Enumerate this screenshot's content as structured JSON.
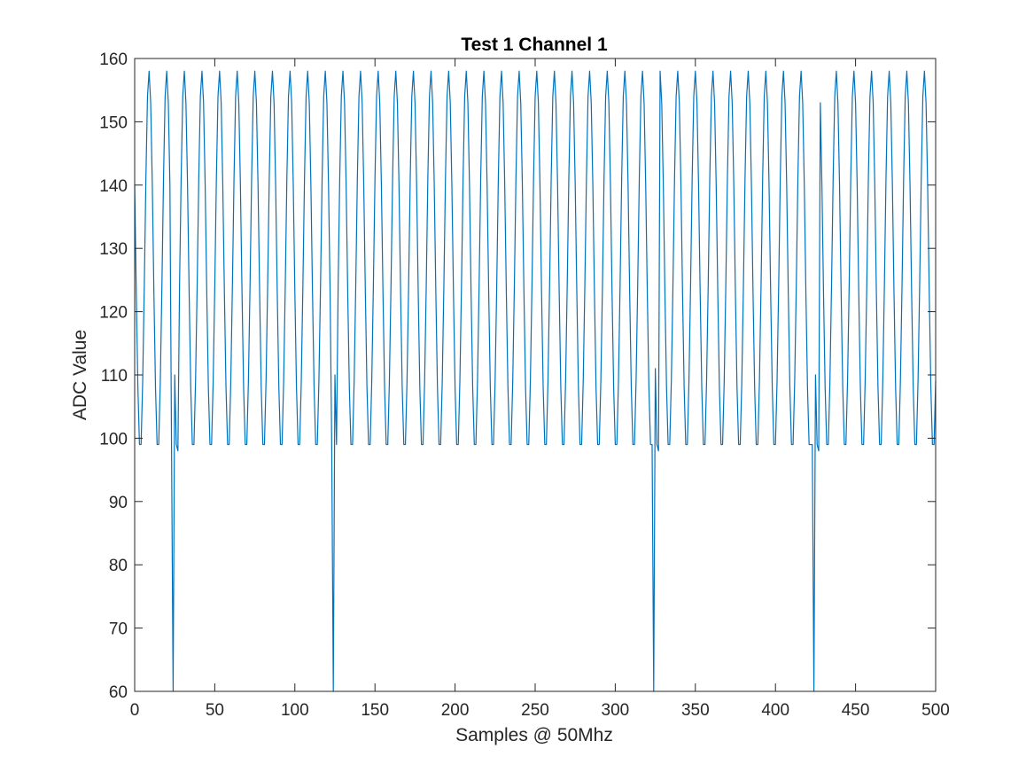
{
  "chart_data": {
    "type": "line",
    "title": "Test 1 Channel 1",
    "xlabel": "Samples @ 50Mhz",
    "ylabel": "ADC Value",
    "xlim": [
      0,
      500
    ],
    "ylim": [
      60,
      160
    ],
    "xticks": [
      0,
      50,
      100,
      150,
      200,
      250,
      300,
      350,
      400,
      450,
      500
    ],
    "yticks": [
      60,
      70,
      80,
      90,
      100,
      110,
      120,
      130,
      140,
      150,
      160
    ],
    "grid": false,
    "series": [
      {
        "color": "#0072BD",
        "signal": {
          "period_samples": 11,
          "max": 158,
          "min": 98,
          "start_value": 140
        },
        "glitches": [
          {
            "x": 23,
            "y": 99
          },
          {
            "x": 24,
            "y": 60
          },
          {
            "x": 25,
            "y": 110
          },
          {
            "x": 26,
            "y": 99
          },
          {
            "x": 27,
            "y": 98
          },
          {
            "x": 123,
            "y": 99
          },
          {
            "x": 124,
            "y": 60
          },
          {
            "x": 125,
            "y": 110
          },
          {
            "x": 126,
            "y": 99
          },
          {
            "x": 323,
            "y": 99
          },
          {
            "x": 324,
            "y": 60
          },
          {
            "x": 325,
            "y": 111
          },
          {
            "x": 326,
            "y": 99
          },
          {
            "x": 327,
            "y": 98
          },
          {
            "x": 423,
            "y": 99
          },
          {
            "x": 424,
            "y": 60
          },
          {
            "x": 425,
            "y": 110
          },
          {
            "x": 426,
            "y": 99
          },
          {
            "x": 427,
            "y": 98
          }
        ]
      }
    ]
  }
}
